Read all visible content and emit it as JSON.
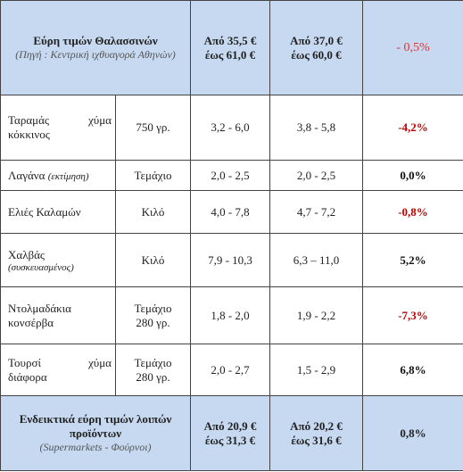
{
  "header": {
    "title": "Εύρη τιμών Θαλασσινών",
    "source": "(Πηγή : Κεντρική ιχθυαγορά Αθηνών)",
    "range1_line1": "Από 35,5 €",
    "range1_line2": "έως 61,0 €",
    "range2_line1": "Από 37,0 €",
    "range2_line2": "έως 60,0 €",
    "change": "- 0,5%"
  },
  "rows": [
    {
      "name_a": "Ταραμάς",
      "name_b": "χύμα",
      "name_c": "κόκκινος",
      "unit": "750 γρ.",
      "range1": "3,2 - 6,0",
      "range2": "3,8 - 5,8",
      "change": "-4,2%"
    },
    {
      "name_a": "Λαγάνα",
      "name_note": "(εκτίμηση)",
      "unit": "Τεμάχιο",
      "range1": "2,0 - 2,5",
      "range2": "2,0 - 2,5",
      "change": "0,0%"
    },
    {
      "name_a": "Ελιές Καλαμών",
      "unit": "Κιλό",
      "range1": "4,0 - 7,8",
      "range2": "4,7 - 7,2",
      "change": "-0,8%"
    },
    {
      "name_a": "Χαλβάς",
      "name_note": "(συσκευασμένος)",
      "unit": "Κιλό",
      "range1": "7,9 - 10,3",
      "range2": "6,3 – 11,0",
      "change": "5,2%"
    },
    {
      "name_a": "Ντολμαδάκια",
      "name_c": "κονσέρβα",
      "unit": "Τεμάχιο",
      "unit2": "280 γρ.",
      "range1": "1,8 - 2,0",
      "range2": "1,9 - 2,2",
      "change": "-7,3%"
    },
    {
      "name_a": "Τουρσί",
      "name_b": "χύμα",
      "name_c": "διάφορα",
      "unit": "Τεμάχιο",
      "unit2": "280 γρ.",
      "range1": "2,0 - 2,7",
      "range2": "1,5 - 2,9",
      "change": "6,8%"
    }
  ],
  "footer": {
    "title": "Ενδεικτικά εύρη τιμών λοιπών προϊόντων",
    "source": "(Supermarkets - Φούρνοι)",
    "range1_line1": "Από 20,9 €",
    "range1_line2": "έως 31,3 €",
    "range2_line1": "Από 20,2 €",
    "range2_line2": "έως 31,6 €",
    "change": "0,8%"
  },
  "colors": {
    "header_bg": "#c6d9f1",
    "negative": "#c00000",
    "border": "#444444"
  }
}
